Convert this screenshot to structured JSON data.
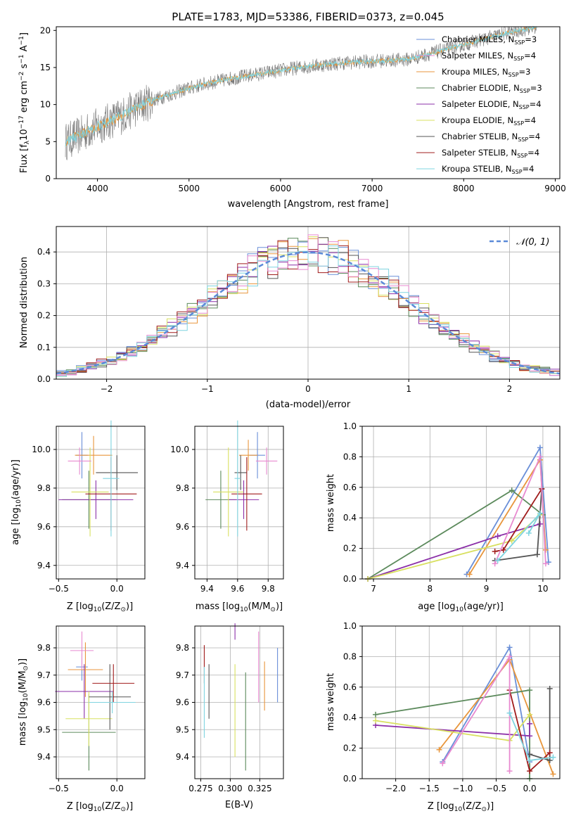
{
  "figure_title": "PLATE=1783, MJD=53386, FIBERID=0373, z=0.045",
  "model_colors": [
    "#6a8fd8",
    "#e8963c",
    "#5c8a5c",
    "#8b2fa8",
    "#d8e060",
    "#555555",
    "#a01c1c",
    "#e88ad0",
    "#7fd4e0"
  ],
  "chart_data": [
    {
      "id": "spectrum",
      "type": "line",
      "title": "PLATE=1783, MJD=53386, FIBERID=0373, z=0.045",
      "xlabel": "wavelength [Angstrom, rest frame]",
      "ylabel": "Flux [f_λ 10^-17 erg cm^-2 s^-1 A^-1]",
      "xlim": [
        3550,
        9050
      ],
      "ylim": [
        0,
        20.5
      ],
      "xticks": [
        "4000",
        "5000",
        "6000",
        "7000",
        "8000",
        "9000"
      ],
      "yticks": [
        "0",
        "5",
        "10",
        "15",
        "20"
      ],
      "legend": [
        "Chabrier MILES, N_SSP=3",
        "Salpeter MILES, N_SSP=4",
        "Kroupa MILES, N_SSP=3",
        "Chabrier ELODIE, N_SSP=3",
        "Salpeter ELODIE, N_SSP=4",
        "Kroupa ELODIE, N_SSP=4",
        "Chabrier STELIB, N_SSP=4",
        "Salpeter STELIB, N_SSP=4",
        "Kroupa STELIB, N_SSP=4"
      ],
      "legend_colors": [
        "#6a8fd8",
        "#e88ad0",
        "#e8963c",
        "#5c8a5c",
        "#8b2fa8",
        "#d8e060",
        "#555555",
        "#a01c1c",
        "#7fd4e0"
      ],
      "legend_position": "upper-right",
      "observed_spectrum": {
        "x": [
          3650,
          3800,
          3950,
          4100,
          4250,
          4400,
          4550,
          4700,
          4850,
          5000,
          5150,
          5300,
          5450,
          5600,
          5750,
          5900,
          6050,
          6200,
          6350,
          6500,
          6650,
          6800,
          6950,
          7100,
          7250,
          7400,
          7550,
          7700,
          7850,
          8000,
          8150,
          8300,
          8450,
          8600,
          8800
        ],
        "y": [
          5.0,
          5.8,
          6.8,
          7.6,
          8.4,
          9.4,
          10.3,
          11.0,
          11.6,
          12.2,
          12.7,
          13.1,
          13.5,
          13.8,
          14.1,
          14.4,
          14.7,
          15.0,
          15.2,
          15.4,
          15.6,
          15.7,
          15.8,
          15.9,
          16.0,
          16.1,
          16.6,
          17.1,
          17.6,
          18.1,
          18.6,
          19.1,
          19.6,
          20.0,
          20.5
        ]
      },
      "model_line_colors": [
        "#e8963c",
        "#7fd4e0"
      ]
    },
    {
      "id": "residual_histogram",
      "type": "histogram",
      "xlabel": "(data-model)/error",
      "ylabel": "Normed distribution",
      "xlim": [
        -2.5,
        2.5
      ],
      "ylim": [
        0,
        0.48
      ],
      "xticks": [
        "−2",
        "−1",
        "0",
        "1",
        "2"
      ],
      "yticks": [
        "0.0",
        "0.1",
        "0.2",
        "0.3",
        "0.4"
      ],
      "legend": [
        "𝒩(0, 1)"
      ],
      "legend_position": "upper-right",
      "grid": true,
      "reference_curve": {
        "name": "𝒩(0, 1)",
        "mean": 0,
        "sigma": 1,
        "color": "#5b8ad8"
      },
      "bin_width": 0.1
    },
    {
      "id": "age_vs_Z",
      "type": "errorbar",
      "xlabel": "Z [log10(Z/Z⊙)]",
      "ylabel": "age [log10(age/yr)]",
      "xlim": [
        -0.52,
        0.24
      ],
      "ylim": [
        9.33,
        10.12
      ],
      "xticks": [
        "−0.5",
        "0.0"
      ],
      "xtick_values": [
        -0.5,
        0.0
      ],
      "yticks": [
        "9.4",
        "9.6",
        "9.8",
        "10.0"
      ],
      "ytick_values": [
        9.4,
        9.6,
        9.8,
        10.0
      ],
      "grid": true,
      "points": [
        {
          "x": -0.3,
          "xerr": 0.05,
          "y": 9.97,
          "yerr": 0.12
        },
        {
          "x": -0.2,
          "xerr": 0.16,
          "y": 9.97,
          "yerr": 0.1
        },
        {
          "x": -0.24,
          "xerr": 0.23,
          "y": 9.74,
          "yerr": 0.15
        },
        {
          "x": -0.18,
          "xerr": 0.32,
          "y": 9.74,
          "yerr": 0.1
        },
        {
          "x": -0.23,
          "xerr": 0.16,
          "y": 9.78,
          "yerr": 0.23
        },
        {
          "x": 0.0,
          "xerr": 0.18,
          "y": 9.88,
          "yerr": 0.09
        },
        {
          "x": -0.05,
          "xerr": 0.22,
          "y": 9.77,
          "yerr": 0.19
        },
        {
          "x": -0.32,
          "xerr": 0.1,
          "y": 9.94,
          "yerr": 0.07
        },
        {
          "x": -0.05,
          "xerr": 0.07,
          "y": 9.85,
          "yerr": 0.3
        }
      ]
    },
    {
      "id": "age_vs_mass",
      "type": "errorbar",
      "xlabel": "mass [log10(M/M⊙)]",
      "ylabel": "",
      "xlim": [
        9.32,
        9.9
      ],
      "ylim": [
        9.33,
        10.12
      ],
      "xticks": [
        "9.4",
        "9.6",
        "9.8"
      ],
      "xtick_values": [
        9.4,
        9.6,
        9.8
      ],
      "yticks": [
        "9.4",
        "9.6",
        "9.8",
        "10.0"
      ],
      "ytick_values": [
        9.4,
        9.6,
        9.8,
        10.0
      ],
      "grid": true,
      "points": [
        {
          "x": 9.73,
          "xerr": 0.05,
          "y": 9.97,
          "yerr": 0.12
        },
        {
          "x": 9.67,
          "xerr": 0.06,
          "y": 9.97,
          "yerr": 0.08
        },
        {
          "x": 9.49,
          "xerr": 0.1,
          "y": 9.74,
          "yerr": 0.15
        },
        {
          "x": 9.64,
          "xerr": 0.1,
          "y": 9.74,
          "yerr": 0.1
        },
        {
          "x": 9.54,
          "xerr": 0.1,
          "y": 9.78,
          "yerr": 0.23
        },
        {
          "x": 9.62,
          "xerr": 0.04,
          "y": 9.88,
          "yerr": 0.09
        },
        {
          "x": 9.66,
          "xerr": 0.1,
          "y": 9.77,
          "yerr": 0.19
        },
        {
          "x": 9.79,
          "xerr": 0.07,
          "y": 9.94,
          "yerr": 0.07
        },
        {
          "x": 9.6,
          "xerr": 0.02,
          "y": 9.85,
          "yerr": 0.3
        }
      ]
    },
    {
      "id": "mass_weight_vs_age",
      "type": "line",
      "xlabel": "age [log10(age/yr)]",
      "ylabel": "mass weight",
      "xlim": [
        6.8,
        10.3
      ],
      "ylim": [
        0.0,
        1.0
      ],
      "xticks": [
        "7",
        "8",
        "9",
        "10"
      ],
      "xtick_values": [
        7,
        8,
        9,
        10
      ],
      "yticks": [
        "0.0",
        "0.2",
        "0.4",
        "0.6",
        "0.8",
        "1.0"
      ],
      "ytick_values": [
        0.0,
        0.2,
        0.4,
        0.6,
        0.8,
        1.0
      ],
      "grid": true,
      "series": [
        {
          "x": [
            8.65,
            9.95,
            10.1
          ],
          "y": [
            0.03,
            0.86,
            0.11
          ]
        },
        {
          "x": [
            8.7,
            9.95,
            10.05
          ],
          "y": [
            0.03,
            0.78,
            0.19
          ]
        },
        {
          "x": [
            6.9,
            9.45,
            10.0
          ],
          "y": [
            0.0,
            0.58,
            0.42
          ]
        },
        {
          "x": [
            6.9,
            9.2,
            9.95
          ],
          "y": [
            0.0,
            0.28,
            0.36
          ]
        },
        {
          "x": [
            6.9,
            9.45,
            9.95
          ],
          "y": [
            0.0,
            0.25,
            0.42
          ]
        },
        {
          "x": [
            9.15,
            9.9,
            9.98
          ],
          "y": [
            0.12,
            0.16,
            0.59
          ]
        },
        {
          "x": [
            9.15,
            9.3,
            9.98
          ],
          "y": [
            0.18,
            0.19,
            0.59
          ]
        },
        {
          "x": [
            9.15,
            9.95,
            10.05
          ],
          "y": [
            0.1,
            0.8,
            0.1
          ]
        },
        {
          "x": [
            9.2,
            9.95,
            9.75
          ],
          "y": [
            0.12,
            0.43,
            0.3
          ]
        }
      ]
    },
    {
      "id": "mass_vs_Z",
      "type": "errorbar",
      "xlabel": "Z [log10(Z/Z⊙)]",
      "ylabel": "mass [log10(M/M⊙)]",
      "xlim": [
        -0.52,
        0.24
      ],
      "ylim": [
        9.32,
        9.88
      ],
      "xticks": [
        "−0.5",
        "0.0"
      ],
      "xtick_values": [
        -0.5,
        0.0
      ],
      "yticks": [
        "9.4",
        "9.5",
        "9.6",
        "9.7",
        "9.8"
      ],
      "ytick_values": [
        9.4,
        9.5,
        9.6,
        9.7,
        9.8
      ],
      "grid": true,
      "points": [
        {
          "x": -0.3,
          "xerr": 0.05,
          "y": 9.73,
          "yerr": 0.05
        },
        {
          "x": -0.27,
          "xerr": 0.15,
          "y": 9.72,
          "yerr": 0.1
        },
        {
          "x": -0.24,
          "xerr": 0.23,
          "y": 9.49,
          "yerr": 0.14
        },
        {
          "x": -0.28,
          "xerr": 0.25,
          "y": 9.64,
          "yerr": 0.1
        },
        {
          "x": -0.24,
          "xerr": 0.2,
          "y": 9.54,
          "yerr": 0.1
        },
        {
          "x": -0.06,
          "xerr": 0.18,
          "y": 9.62,
          "yerr": 0.12
        },
        {
          "x": -0.03,
          "xerr": 0.18,
          "y": 9.67,
          "yerr": 0.07
        },
        {
          "x": -0.3,
          "xerr": 0.1,
          "y": 9.79,
          "yerr": 0.07
        },
        {
          "x": -0.04,
          "xerr": 0.2,
          "y": 9.6,
          "yerr": 0.04
        }
      ]
    },
    {
      "id": "mass_vs_ebv",
      "type": "errorbar",
      "xlabel": "E(B-V)",
      "ylabel": "",
      "xlim": [
        0.27,
        0.345
      ],
      "ylim": [
        9.32,
        9.88
      ],
      "xticks": [
        "0.275",
        "0.300",
        "0.325"
      ],
      "xtick_values": [
        0.275,
        0.3,
        0.325
      ],
      "yticks": [
        "9.4",
        "9.5",
        "9.6",
        "9.7",
        "9.8"
      ],
      "ytick_values": [
        9.4,
        9.5,
        9.6,
        9.7,
        9.8
      ],
      "grid": true,
      "points": [
        {
          "x": 0.34,
          "xerr": 0.0,
          "y": 9.7,
          "yerr": 0.1
        },
        {
          "x": 0.329,
          "xerr": 0.0,
          "y": 9.66,
          "yerr": 0.09
        },
        {
          "x": 0.313,
          "xerr": 0.0,
          "y": 9.53,
          "yerr": 0.18
        },
        {
          "x": 0.304,
          "xerr": 0.0,
          "y": 9.86,
          "yerr": 0.03
        },
        {
          "x": 0.304,
          "xerr": 0.0,
          "y": 9.57,
          "yerr": 0.17
        },
        {
          "x": 0.282,
          "xerr": 0.0,
          "y": 9.64,
          "yerr": 0.1
        },
        {
          "x": 0.278,
          "xerr": 0.0,
          "y": 9.74,
          "yerr": 0.07
        },
        {
          "x": 0.324,
          "xerr": 0.0,
          "y": 9.73,
          "yerr": 0.13
        },
        {
          "x": 0.278,
          "xerr": 0.0,
          "y": 9.6,
          "yerr": 0.13
        }
      ]
    },
    {
      "id": "mass_weight_vs_Z",
      "type": "line",
      "xlabel": "Z [log10(Z/Z⊙)]",
      "ylabel": "mass weight",
      "xlim": [
        -2.5,
        0.45
      ],
      "ylim": [
        0.0,
        1.0
      ],
      "xticks": [
        "−2.0",
        "−1.5",
        "−1.0",
        "−0.5",
        "0.0"
      ],
      "xtick_values": [
        -2.0,
        -1.5,
        -1.0,
        -0.5,
        0.0
      ],
      "yticks": [
        "0.0",
        "0.2",
        "0.4",
        "0.6",
        "0.8",
        "1.0"
      ],
      "ytick_values": [
        0.0,
        0.2,
        0.4,
        0.6,
        0.8,
        1.0
      ],
      "grid": true,
      "series": [
        {
          "x": [
            -1.3,
            -0.3,
            0.0
          ],
          "y": [
            0.11,
            0.86,
            0.11
          ]
        },
        {
          "x": [
            -1.35,
            -0.3,
            0.35
          ],
          "y": [
            0.19,
            0.78,
            0.03
          ]
        },
        {
          "x": [
            -2.3,
            0.0,
            0.0
          ],
          "y": [
            0.42,
            0.58,
            0.0
          ]
        },
        {
          "x": [
            -2.3,
            0.0,
            0.0
          ],
          "y": [
            0.35,
            0.28,
            0.36
          ]
        },
        {
          "x": [
            -2.3,
            -0.3,
            0.0
          ],
          "y": [
            0.38,
            0.25,
            0.42
          ]
        },
        {
          "x": [
            0.0,
            0.3,
            0.3
          ],
          "y": [
            0.16,
            0.12,
            0.59
          ]
        },
        {
          "x": [
            -0.3,
            0.0,
            0.3
          ],
          "y": [
            0.58,
            0.05,
            0.17
          ]
        },
        {
          "x": [
            -1.3,
            -0.3,
            -0.3
          ],
          "y": [
            0.1,
            0.8,
            0.05
          ]
        },
        {
          "x": [
            -0.3,
            0.0,
            0.35
          ],
          "y": [
            0.43,
            0.12,
            0.14
          ]
        }
      ]
    }
  ]
}
